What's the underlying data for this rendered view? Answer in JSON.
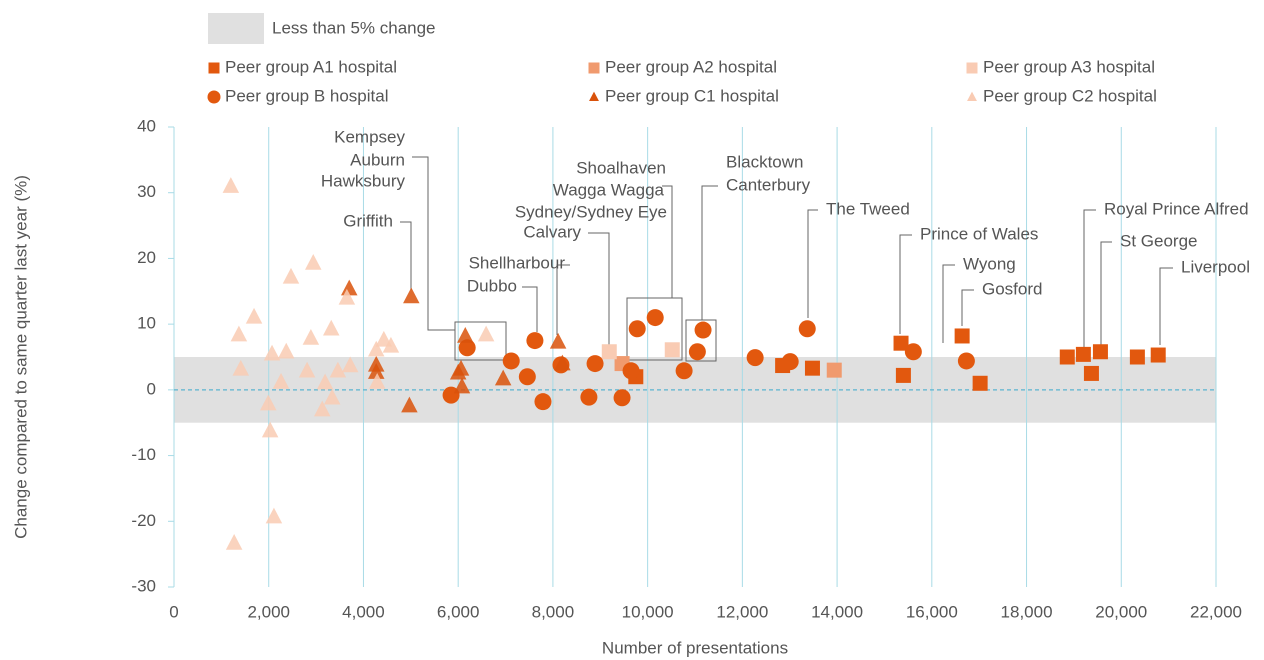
{
  "chart_data": {
    "type": "scatter",
    "xlabel": "Number of presentations",
    "ylabel": "Change compared to same quarter last year (%)",
    "xlim": [
      0,
      22000
    ],
    "ylim": [
      -30,
      40
    ],
    "xticks": [
      0,
      {
        "value": 2000,
        "label": "2,000"
      },
      {
        "value": 4000,
        "label": "4,000"
      },
      {
        "value": 6000,
        "label": "6,000"
      },
      {
        "value": 8000,
        "label": "8,000"
      },
      {
        "value": 10000,
        "label": "10,000"
      },
      {
        "value": 12000,
        "label": "12,000"
      },
      {
        "value": 14000,
        "label": "14,000"
      },
      {
        "value": 16000,
        "label": "16,000"
      },
      {
        "value": 18000,
        "label": "18,000"
      },
      {
        "value": 20000,
        "label": "20,000"
      },
      {
        "value": 22000,
        "label": "22,000"
      }
    ],
    "yticks": [
      -30,
      -20,
      -10,
      0,
      10,
      20,
      30,
      40
    ],
    "grid": "x",
    "band": {
      "label": "Less than 5% change",
      "range": [
        -5,
        5
      ],
      "color": "#e0e0e0"
    },
    "series": [
      {
        "name": "Peer group A1 hospital",
        "marker": "square",
        "color": "#e2580e",
        "x": [
          9750,
          12850,
          13480,
          15350,
          15400,
          16640,
          17020,
          18860,
          19200,
          19370,
          19560,
          20340,
          20780
        ],
        "values": [
          2,
          3.7,
          3.3,
          7.1,
          2.2,
          8.2,
          1,
          5,
          5.4,
          2.5,
          5.8,
          5,
          5.3
        ]
      },
      {
        "name": "Peer group A2 hospital",
        "marker": "square",
        "color": "#f09a6e",
        "x": [
          9460,
          13940
        ],
        "values": [
          4,
          3
        ]
      },
      {
        "name": "Peer group A3 hospital",
        "marker": "square",
        "color": "#f9cbb3",
        "x": [
          9190,
          10520
        ],
        "values": [
          5.8,
          6.1
        ]
      },
      {
        "name": "Peer group B hospital",
        "marker": "circle",
        "color": "#e2580e",
        "x": [
          6190,
          5850,
          7120,
          7460,
          7620,
          7790,
          8170,
          8760,
          8890,
          9460,
          9650,
          9780,
          10160,
          10770,
          11050,
          11170,
          12270,
          13010,
          13370,
          15610,
          16730
        ],
        "values": [
          6.4,
          -0.8,
          4.4,
          2,
          7.5,
          -1.8,
          3.8,
          -1.1,
          4,
          -1.2,
          2.9,
          9.3,
          11,
          2.9,
          5.8,
          9.1,
          4.9,
          4.3,
          9.3,
          5.8,
          4.4
        ]
      },
      {
        "name": "Peer group C1 hospital",
        "marker": "triangle",
        "color": "#d9520b",
        "x": [
          3700,
          4270,
          4270,
          5010,
          4970,
          6150,
          6060,
          6000,
          6080,
          6950,
          8110,
          8200
        ],
        "values": [
          15.4,
          3.8,
          2.7,
          14.2,
          -2.4,
          8.2,
          3.2,
          2.6,
          0.5,
          1.7,
          7.3,
          4
        ]
      },
      {
        "name": "Peer group C2 hospital",
        "marker": "triangle",
        "color": "#f9cbb3",
        "x": [
          1200,
          1270,
          1370,
          1410,
          1690,
          1990,
          2030,
          2070,
          2110,
          2260,
          2370,
          2470,
          2810,
          2890,
          2940,
          3130,
          3190,
          3320,
          3340,
          3460,
          3650,
          3720,
          4270,
          4290,
          4430,
          4580,
          6590
        ],
        "values": [
          31,
          -23.3,
          8.4,
          3.2,
          11.1,
          -2.1,
          -6.2,
          5.5,
          -19.3,
          1.2,
          5.8,
          17.2,
          2.9,
          7.9,
          19.3,
          -3,
          1.1,
          9.3,
          -1.2,
          2.9,
          14,
          3.7,
          6.1,
          1.2,
          7.6,
          6.7,
          8.4
        ]
      }
    ],
    "annotations": [
      "Kempsey",
      "Auburn",
      "Hawksbury",
      "Griffith",
      "Shellharbour",
      "Dubbo",
      "Calvary",
      "Shoalhaven",
      "Wagga Wagga",
      "Sydney/Sydney Eye",
      "Blacktown",
      "Canterbury",
      "The Tweed",
      "Prince of Wales",
      "Wyong",
      "Gosford",
      "Royal Prince Alfred",
      "St George",
      "Liverpool"
    ]
  }
}
